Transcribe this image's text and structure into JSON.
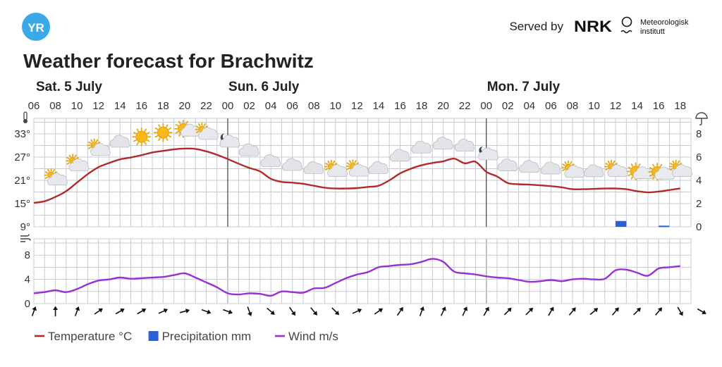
{
  "header": {
    "logo_text": "YR",
    "served_by": "Served by",
    "nrk_logo_text": "NRK",
    "met_line1": "Meteorologisk",
    "met_line2": "institutt",
    "title": "Weather forecast for Brachwitz"
  },
  "colors": {
    "yr_blue": "#3aa9e8",
    "temperature": "#b22a2a",
    "precipitation": "#2a62d6",
    "wind": "#9a2fd6",
    "grid": "#c6cbd3",
    "day_line": "#4a4f57"
  },
  "days": [
    {
      "label": "Sat. 5 July",
      "start": 0
    },
    {
      "label": "Sun. 6 July",
      "start": 18
    },
    {
      "label": "Mon. 7 July",
      "start": 42
    }
  ],
  "legend": [
    {
      "label": "Temperature °C",
      "color": "#b22a2a",
      "kind": "line"
    },
    {
      "label": "Precipitation mm",
      "color": "#2a62d6",
      "kind": "box"
    },
    {
      "label": "Wind m/s",
      "color": "#9a2fd6",
      "kind": "line"
    }
  ],
  "chart_data": [
    {
      "type": "line",
      "name": "temperature-precipitation",
      "x_tick_labels": [
        "06",
        "08",
        "10",
        "12",
        "14",
        "16",
        "18",
        "20",
        "22",
        "00",
        "02",
        "04",
        "06",
        "08",
        "10",
        "12",
        "14",
        "16",
        "18",
        "20",
        "22",
        "00",
        "02",
        "04",
        "06",
        "08",
        "10",
        "12",
        "14",
        "16",
        "18"
      ],
      "x_start_hour": 6,
      "x_hours": 61,
      "y_left_ticks": [
        9,
        15,
        21,
        27,
        33
      ],
      "y_left_labels": [
        "9°",
        "15°",
        "21°",
        "27°",
        "33°"
      ],
      "y_left_range": [
        9,
        37
      ],
      "y_right_ticks": [
        0,
        2,
        4,
        6,
        8
      ],
      "y_right_range": [
        0,
        9.33
      ],
      "grid": true,
      "series": [
        {
          "name": "Temperature °C",
          "values": [
            15.2,
            15.6,
            16.7,
            18.2,
            20.4,
            22.6,
            24.4,
            25.5,
            26.4,
            26.9,
            27.5,
            28.2,
            28.6,
            29.0,
            29.2,
            29.1,
            28.5,
            27.6,
            26.5,
            25.3,
            24.2,
            23.3,
            21.4,
            20.6,
            20.4,
            20.1,
            19.6,
            19.1,
            18.9,
            18.9,
            19.0,
            19.3,
            19.6,
            21.0,
            22.8,
            24.0,
            24.9,
            25.5,
            25.9,
            26.6,
            25.4,
            25.8,
            23.2,
            22.0,
            20.3,
            20.0,
            19.9,
            19.7,
            19.5,
            19.2,
            18.7,
            18.7,
            18.8,
            18.9,
            18.9,
            18.7,
            18.2,
            17.9,
            18.1,
            18.5,
            18.9
          ]
        },
        {
          "name": "Precipitation mm",
          "bars": [
            {
              "x": 54.5,
              "value": 0.5
            },
            {
              "x": 58.5,
              "value": 0.1
            }
          ]
        }
      ]
    },
    {
      "type": "line",
      "name": "wind",
      "y_ticks": [
        0,
        4,
        8
      ],
      "y_range": [
        0,
        10.7
      ],
      "grid": true,
      "series": [
        {
          "name": "Wind m/s",
          "values": [
            1.7,
            1.9,
            2.2,
            1.9,
            2.4,
            3.2,
            3.8,
            4.0,
            4.3,
            4.1,
            4.2,
            4.3,
            4.4,
            4.7,
            5.0,
            4.3,
            3.5,
            2.7,
            1.7,
            1.5,
            1.7,
            1.6,
            1.3,
            2.0,
            1.9,
            1.8,
            2.5,
            2.6,
            3.4,
            4.2,
            4.8,
            5.2,
            6.0,
            6.2,
            6.4,
            6.5,
            6.9,
            7.4,
            6.9,
            5.3,
            5.0,
            4.8,
            4.5,
            4.3,
            4.2,
            3.9,
            3.6,
            3.7,
            3.9,
            3.7,
            4.0,
            4.1,
            4.0,
            4.1,
            5.5,
            5.6,
            5.1,
            4.6,
            5.8,
            6.0,
            6.2
          ]
        }
      ]
    }
  ],
  "weather_icons": [
    {
      "x": 1,
      "type": "partly-cloudy-day"
    },
    {
      "x": 2,
      "type": "partly-cloudy-day"
    },
    {
      "x": 3,
      "type": "partly-cloudy-day"
    },
    {
      "x": 4,
      "type": "cloud"
    },
    {
      "x": 5,
      "type": "sun"
    },
    {
      "x": 6,
      "type": "sun"
    },
    {
      "x": 7,
      "type": "fair-day"
    },
    {
      "x": 8,
      "type": "partly-cloudy-day"
    },
    {
      "x": 9,
      "type": "partly-cloudy-night"
    },
    {
      "x": 10,
      "type": "cloud"
    },
    {
      "x": 11,
      "type": "cloud"
    },
    {
      "x": 12,
      "type": "cloud"
    },
    {
      "x": 13,
      "type": "cloud"
    },
    {
      "x": 14,
      "type": "partly-cloudy-day"
    },
    {
      "x": 15,
      "type": "partly-cloudy-day"
    },
    {
      "x": 16,
      "type": "cloud"
    },
    {
      "x": 17,
      "type": "cloud"
    },
    {
      "x": 18,
      "type": "cloud"
    },
    {
      "x": 19,
      "type": "cloud"
    },
    {
      "x": 20,
      "type": "cloud"
    },
    {
      "x": 21,
      "type": "partly-cloudy-night"
    },
    {
      "x": 22,
      "type": "cloud"
    },
    {
      "x": 23,
      "type": "cloud"
    },
    {
      "x": 24,
      "type": "cloud"
    },
    {
      "x": 25,
      "type": "partly-cloudy-day"
    },
    {
      "x": 26,
      "type": "cloud"
    },
    {
      "x": 27,
      "type": "partly-cloudy-day"
    },
    {
      "x": 28,
      "type": "fair-day"
    },
    {
      "x": 29,
      "type": "fair-day"
    },
    {
      "x": 30,
      "type": "partly-cloudy-day"
    }
  ],
  "wind_directions_deg": [
    200,
    180,
    200,
    235,
    240,
    240,
    245,
    255,
    290,
    290,
    340,
    310,
    325,
    320,
    315,
    245,
    235,
    215,
    200,
    205,
    205,
    210,
    225,
    225,
    210,
    220,
    230,
    220,
    225,
    220,
    330,
    300
  ]
}
